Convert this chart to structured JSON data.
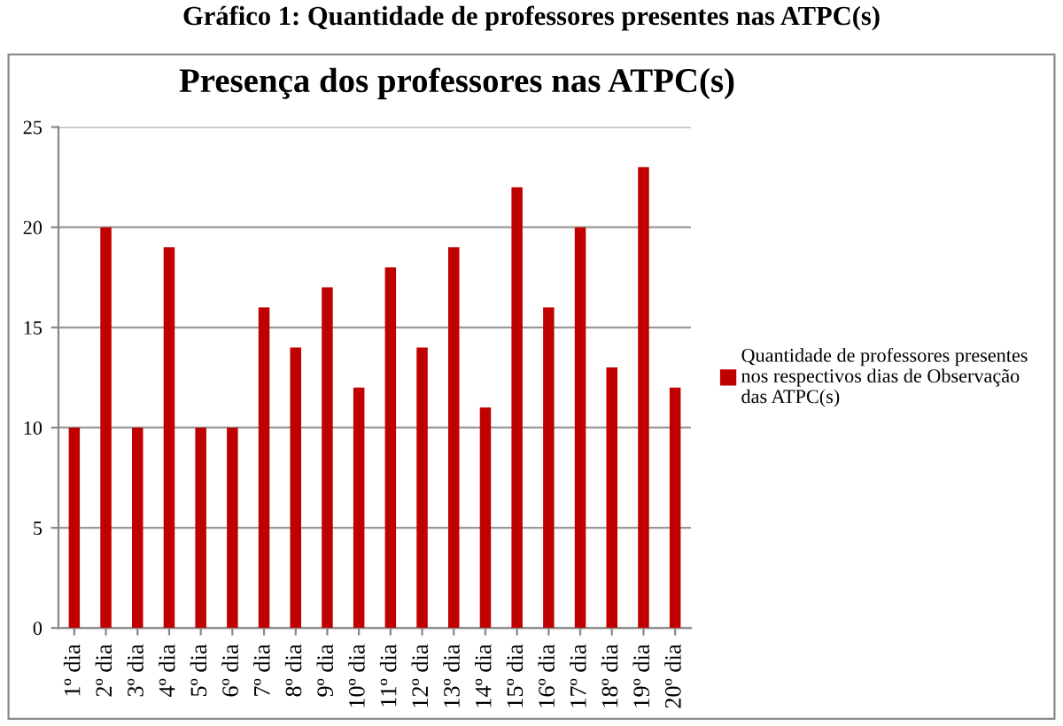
{
  "chart_data": {
    "type": "bar",
    "title": "Gráfico 1: Quantidade de professores presentes nas ATPC(s)",
    "subtitle": "Presença dos professores nas ATPC(s)",
    "categories": [
      "1º dia",
      "2º dia",
      "3º dia",
      "4º dia",
      "5º dia",
      "6º dia",
      "7º dia",
      "8º dia",
      "9º dia",
      "10º dia",
      "11º dia",
      "12º dia",
      "13º dia",
      "14º dia",
      "15º dia",
      "16º dia",
      "17º dia",
      "18º dia",
      "19º dia",
      "20º dia"
    ],
    "series": [
      {
        "name": "Quantidade de professores presentes nos respectivos dias de Observação das ATPC(s)",
        "color": "#c00000",
        "values": [
          10,
          20,
          10,
          19,
          10,
          10,
          16,
          14,
          17,
          12,
          18,
          14,
          19,
          11,
          22,
          16,
          20,
          13,
          23,
          12
        ]
      }
    ],
    "ylim": [
      0,
      25
    ],
    "yticks": [
      0,
      5,
      10,
      15,
      20,
      25
    ],
    "grid": "y",
    "legend": "right"
  }
}
